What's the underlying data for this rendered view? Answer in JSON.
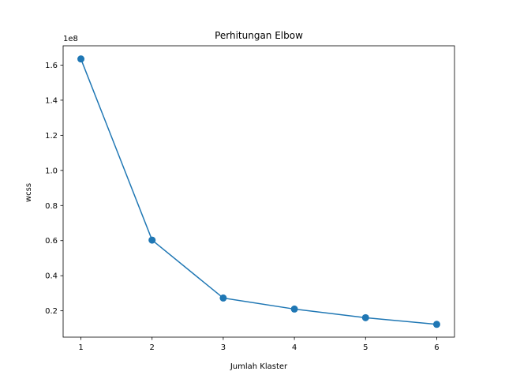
{
  "chart_data": {
    "type": "line",
    "title": "Perhitungan Elbow",
    "xlabel": "Jumlah Klaster",
    "ylabel": "wcss",
    "y_offset_label": "1e8",
    "x": [
      1,
      2,
      3,
      4,
      5,
      6
    ],
    "series": [
      {
        "values": [
          163500000,
          60300000,
          27300000,
          21000000,
          16100000,
          12300000
        ],
        "color": "#1f77b4"
      }
    ],
    "xlim": [
      0.75,
      6.25
    ],
    "ylim": [
      5000000,
      171000000
    ],
    "x_ticks": [
      1,
      2,
      3,
      4,
      5,
      6
    ],
    "x_tick_labels": [
      "1",
      "2",
      "3",
      "4",
      "5",
      "6"
    ],
    "y_ticks": [
      20000000,
      40000000,
      60000000,
      80000000,
      100000000,
      120000000,
      140000000,
      160000000
    ],
    "y_tick_labels": [
      "0.2",
      "0.4",
      "0.6",
      "0.8",
      "1.0",
      "1.2",
      "1.4",
      "1.6"
    ],
    "grid": false,
    "legend": "none"
  }
}
